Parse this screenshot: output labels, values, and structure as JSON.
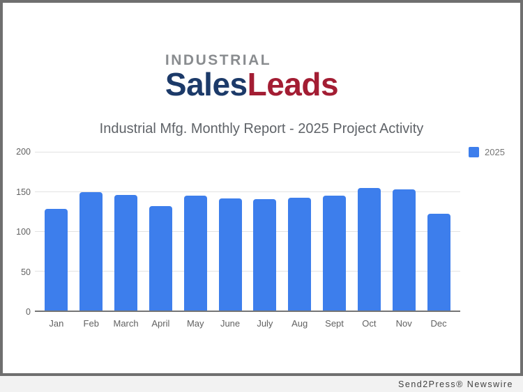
{
  "logo": {
    "top": "INDUSTRIAL",
    "part1": "Sales",
    "part2": "Leads"
  },
  "chart_data": {
    "type": "bar",
    "title": "Industrial Mfg. Monthly Report - 2025 Project Activity",
    "categories": [
      "Jan",
      "Feb",
      "March",
      "April",
      "May",
      "June",
      "July",
      "Aug",
      "Sept",
      "Oct",
      "Nov",
      "Dec"
    ],
    "series": [
      {
        "name": "2025",
        "values": [
          128,
          149,
          146,
          132,
          145,
          141,
          140,
          142,
          145,
          154,
          153,
          122
        ]
      }
    ],
    "ylim": [
      0,
      200
    ],
    "yticks": [
      200,
      150,
      100,
      50,
      0
    ],
    "grid": true,
    "legend_position": "top-right",
    "bar_color": "#3d7eec"
  },
  "colors": {
    "bar": "#3d7eec",
    "logo_industrial": "#898c8f",
    "logo_sales": "#1c3a69",
    "logo_leads": "#a31d33",
    "title_text": "#5f6368",
    "axis_text": "#616161",
    "gridline": "#e2e2e2",
    "frame_border": "#6f6f6f"
  },
  "footer": {
    "attribution": "Send2Press® Newswire"
  }
}
